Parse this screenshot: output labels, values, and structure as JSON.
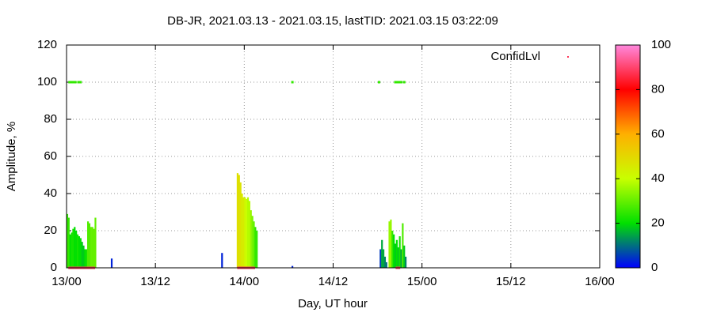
{
  "chart_data": {
    "type": "impulse",
    "title": "DB-JR, 2021.03.13 - 2021.03.15, lastTID: 2021.03.15 03:22:09",
    "x_label": "Day, UT hour",
    "y_label": "Amplitude, %",
    "xlim": [
      0,
      72
    ],
    "xticks": [
      {
        "value": 0,
        "label": "13/00"
      },
      {
        "value": 12,
        "label": "13/12"
      },
      {
        "value": 24,
        "label": "14/00"
      },
      {
        "value": 36,
        "label": "14/12"
      },
      {
        "value": 48,
        "label": "15/00"
      },
      {
        "value": 60,
        "label": "15/12"
      },
      {
        "value": 72,
        "label": "16/00"
      }
    ],
    "ylim": [
      0,
      120
    ],
    "yticks": [
      0,
      20,
      40,
      60,
      80,
      100,
      120
    ],
    "clim": [
      0,
      100
    ],
    "cticks": [
      0,
      20,
      40,
      60,
      80,
      100
    ],
    "palette": [
      "#0000ff",
      "#00e000",
      "#c8ff00",
      "#ffb000",
      "#ff0000",
      "#ff88dd"
    ],
    "grid": true,
    "legend_position": "top-right",
    "series": [
      {
        "name": "ConfidLvl",
        "style": "impulses",
        "x": [
          0.1,
          0.3,
          0.5,
          0.7,
          0.9,
          1.1,
          1.3,
          1.5,
          1.7,
          1.9,
          2.1,
          2.3,
          2.5,
          2.7,
          2.9,
          3.1,
          3.3,
          3.5,
          3.7,
          3.9,
          6.1,
          21,
          23.1,
          23.3,
          23.5,
          23.7,
          23.9,
          24.1,
          24.3,
          24.5,
          24.7,
          24.9,
          25.1,
          25.3,
          25.5,
          25.7,
          30.5,
          42.4,
          42.6,
          42.8,
          43.0,
          43.2,
          43.6,
          43.8,
          44.0,
          44.2,
          44.4,
          44.6,
          44.8,
          45.0,
          45.2,
          45.4,
          45.6,
          45.8
        ],
        "values": [
          29,
          27,
          18,
          19,
          21,
          22,
          20,
          18,
          17,
          16,
          14,
          12,
          10,
          10,
          25,
          24,
          22,
          22,
          21,
          27,
          5,
          8,
          51,
          50,
          46,
          40,
          38,
          38,
          37,
          38,
          36,
          31,
          28,
          25,
          22,
          20,
          1,
          10,
          15,
          10,
          6,
          3,
          25,
          26,
          20,
          18,
          13,
          15,
          11,
          17,
          10,
          24,
          12,
          6
        ],
        "confidence": [
          25,
          25,
          20,
          22,
          22,
          20,
          20,
          22,
          20,
          20,
          18,
          18,
          20,
          22,
          28,
          28,
          30,
          30,
          30,
          30,
          3,
          3,
          48,
          48,
          47,
          45,
          45,
          42,
          40,
          38,
          38,
          35,
          32,
          30,
          25,
          25,
          3,
          5,
          15,
          15,
          12,
          10,
          35,
          35,
          25,
          20,
          18,
          20,
          18,
          22,
          15,
          28,
          18,
          12
        ]
      },
      {
        "style": "points",
        "x": [
          0.4,
          0.6,
          0.8,
          1.0,
          1.2,
          1.6,
          1.9,
          30.5,
          42.2,
          44.4,
          44.6,
          44.8,
          45.0,
          45.2,
          45.6
        ],
        "values": [
          100,
          100,
          100,
          100,
          100,
          100,
          100,
          100,
          100,
          100,
          100,
          100,
          100,
          100,
          100
        ],
        "confidence": [
          25,
          25,
          25,
          25,
          25,
          25,
          25,
          25,
          25,
          25,
          25,
          25,
          25,
          25,
          25
        ]
      },
      {
        "style": "points",
        "x": [
          0.4,
          0.7,
          1.0,
          1.3,
          1.6,
          1.9,
          2.2,
          2.5,
          2.8,
          3.1,
          3.4,
          3.7,
          23.2,
          23.5,
          23.8,
          24.1,
          24.4,
          24.7,
          25.0,
          25.3,
          44.6,
          44.9
        ],
        "values": [
          0,
          0,
          0,
          0,
          0,
          0,
          0,
          0,
          0,
          0,
          0,
          0,
          0,
          0,
          0,
          0,
          0,
          0,
          0,
          0,
          0,
          0
        ],
        "confidence": [
          88,
          88,
          88,
          88,
          88,
          88,
          88,
          88,
          88,
          88,
          88,
          88,
          88,
          88,
          88,
          88,
          88,
          88,
          88,
          88,
          88,
          88
        ]
      }
    ]
  }
}
